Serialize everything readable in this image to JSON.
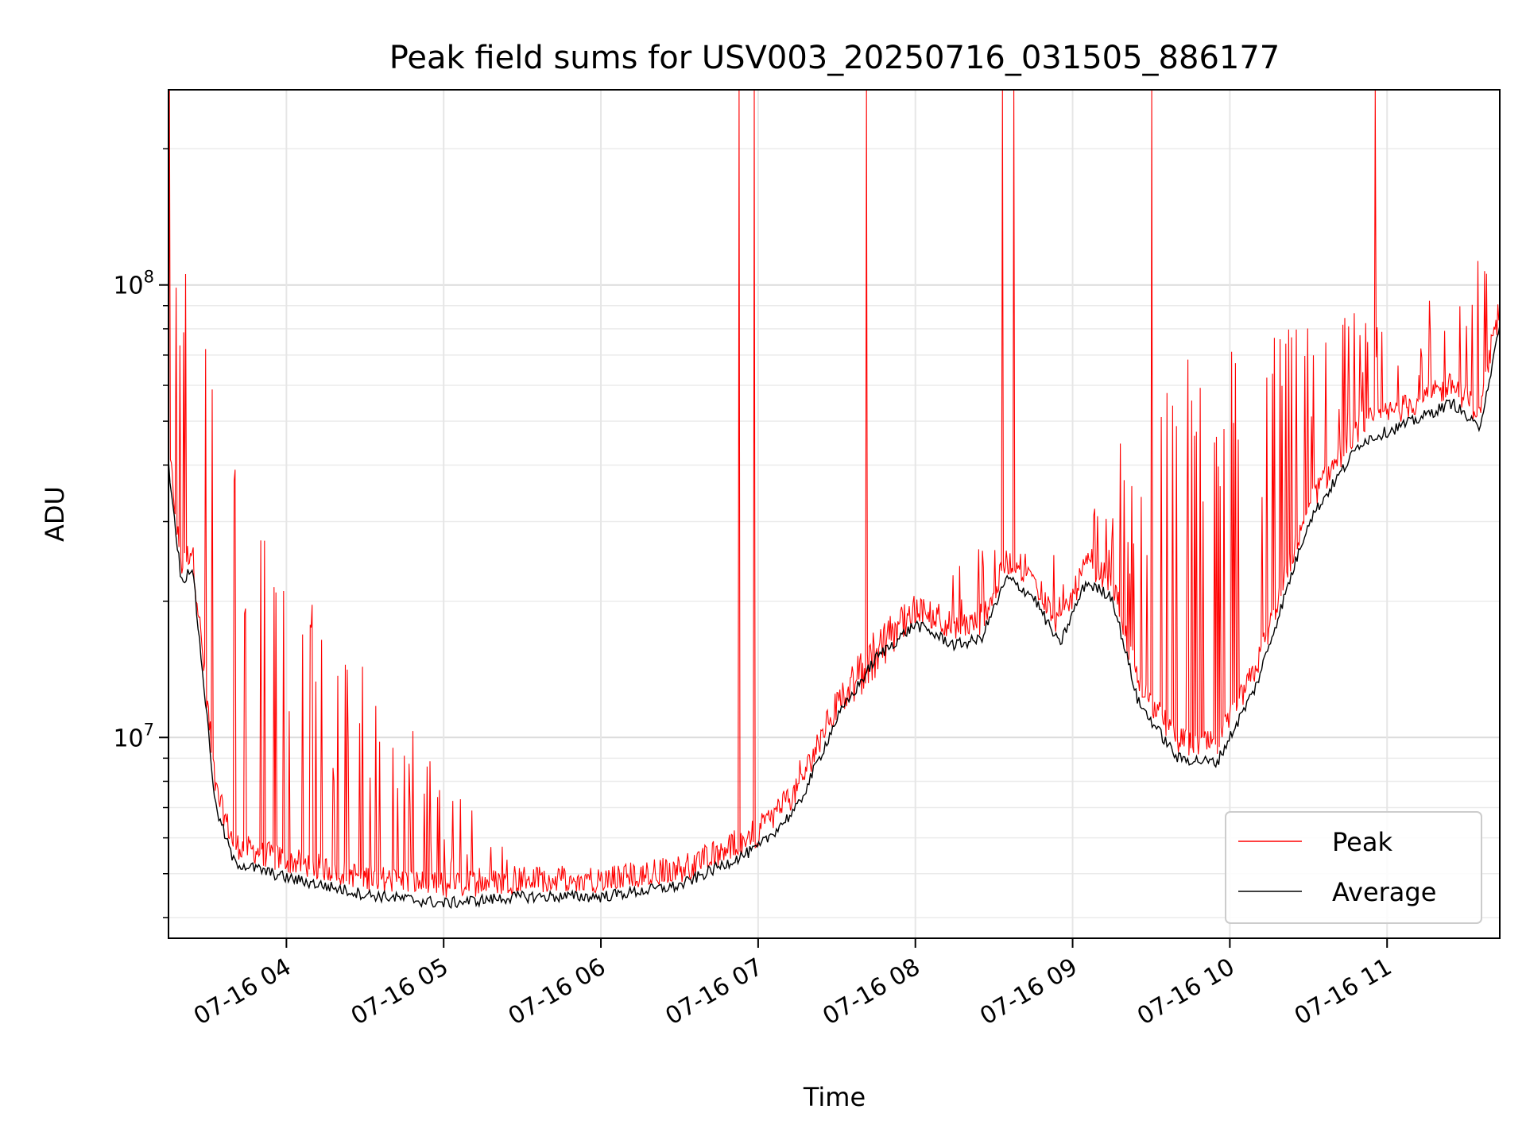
{
  "chart_data": {
    "type": "line",
    "title": "Peak field sums for USV003_20250716_031505_886177",
    "xlabel": "Time",
    "ylabel": "ADU",
    "yscale": "log",
    "grid": true,
    "legend_position": "bottom-right",
    "xlim": [
      "07-16 03:15",
      "07-16 11:43"
    ],
    "ylim": [
      3600000,
      270000000
    ],
    "x_ticks": [
      "07-16 04",
      "07-16 05",
      "07-16 06",
      "07-16 07",
      "07-16 08",
      "07-16 09",
      "07-16 10",
      "07-16 11"
    ],
    "y_ticks": [
      {
        "base": "10",
        "exp": "7",
        "value": 10000000
      },
      {
        "base": "10",
        "exp": "8",
        "value": 100000000
      }
    ],
    "series": [
      {
        "name": "Peak",
        "color": "#ff0000",
        "description_points": [
          [
            "07-16 03:15",
            70000000
          ],
          [
            "07-16 03:25",
            80000000
          ],
          [
            "07-16 03:35",
            40000000
          ],
          [
            "07-16 03:45",
            20000000
          ],
          [
            "07-16 04:00",
            15000000
          ],
          [
            "07-16 04:30",
            10000000
          ],
          [
            "07-16 05:00",
            6500000
          ],
          [
            "07-16 05:30",
            5000000
          ],
          [
            "07-16 06:00",
            4600000
          ],
          [
            "07-16 06:30",
            4800000
          ],
          [
            "07-16 07:00",
            5800000
          ],
          [
            "07-16 07:30",
            11000000
          ],
          [
            "07-16 08:00",
            18000000
          ],
          [
            "07-16 08:30",
            24000000
          ],
          [
            "07-16 09:00",
            25000000
          ],
          [
            "07-16 09:30",
            40000000
          ],
          [
            "07-16 10:00",
            45000000
          ],
          [
            "07-16 10:30",
            60000000
          ],
          [
            "07-16 11:00",
            75000000
          ],
          [
            "07-16 11:43",
            90000000
          ]
        ]
      },
      {
        "name": "Average",
        "color": "#000000",
        "points": [
          [
            "07-16 03:15",
            40000000
          ],
          [
            "07-16 03:20",
            22000000
          ],
          [
            "07-16 03:24",
            24000000
          ],
          [
            "07-16 03:28",
            14000000
          ],
          [
            "07-16 03:33",
            7000000
          ],
          [
            "07-16 03:40",
            5300000
          ],
          [
            "07-16 04:00",
            4900000
          ],
          [
            "07-16 04:30",
            4500000
          ],
          [
            "07-16 05:00",
            4300000
          ],
          [
            "07-16 05:30",
            4450000
          ],
          [
            "07-16 06:00",
            4450000
          ],
          [
            "07-16 06:30",
            4700000
          ],
          [
            "07-16 07:00",
            5700000
          ],
          [
            "07-16 07:15",
            7000000
          ],
          [
            "07-16 07:30",
            11000000
          ],
          [
            "07-16 07:45",
            15000000
          ],
          [
            "07-16 08:00",
            17800000
          ],
          [
            "07-16 08:15",
            16000000
          ],
          [
            "07-16 08:25",
            16500000
          ],
          [
            "07-16 08:35",
            22500000
          ],
          [
            "07-16 08:45",
            20500000
          ],
          [
            "07-16 08:55",
            16000000
          ],
          [
            "07-16 09:05",
            22000000
          ],
          [
            "07-16 09:15",
            20500000
          ],
          [
            "07-16 09:25",
            12000000
          ],
          [
            "07-16 09:40",
            9000000
          ],
          [
            "07-16 09:55",
            8800000
          ],
          [
            "07-16 10:10",
            13000000
          ],
          [
            "07-16 10:30",
            30000000
          ],
          [
            "07-16 10:50",
            45000000
          ],
          [
            "07-16 11:10",
            50000000
          ],
          [
            "07-16 11:25",
            55000000
          ],
          [
            "07-16 11:35",
            48000000
          ],
          [
            "07-16 11:43",
            80000000
          ]
        ]
      }
    ]
  }
}
